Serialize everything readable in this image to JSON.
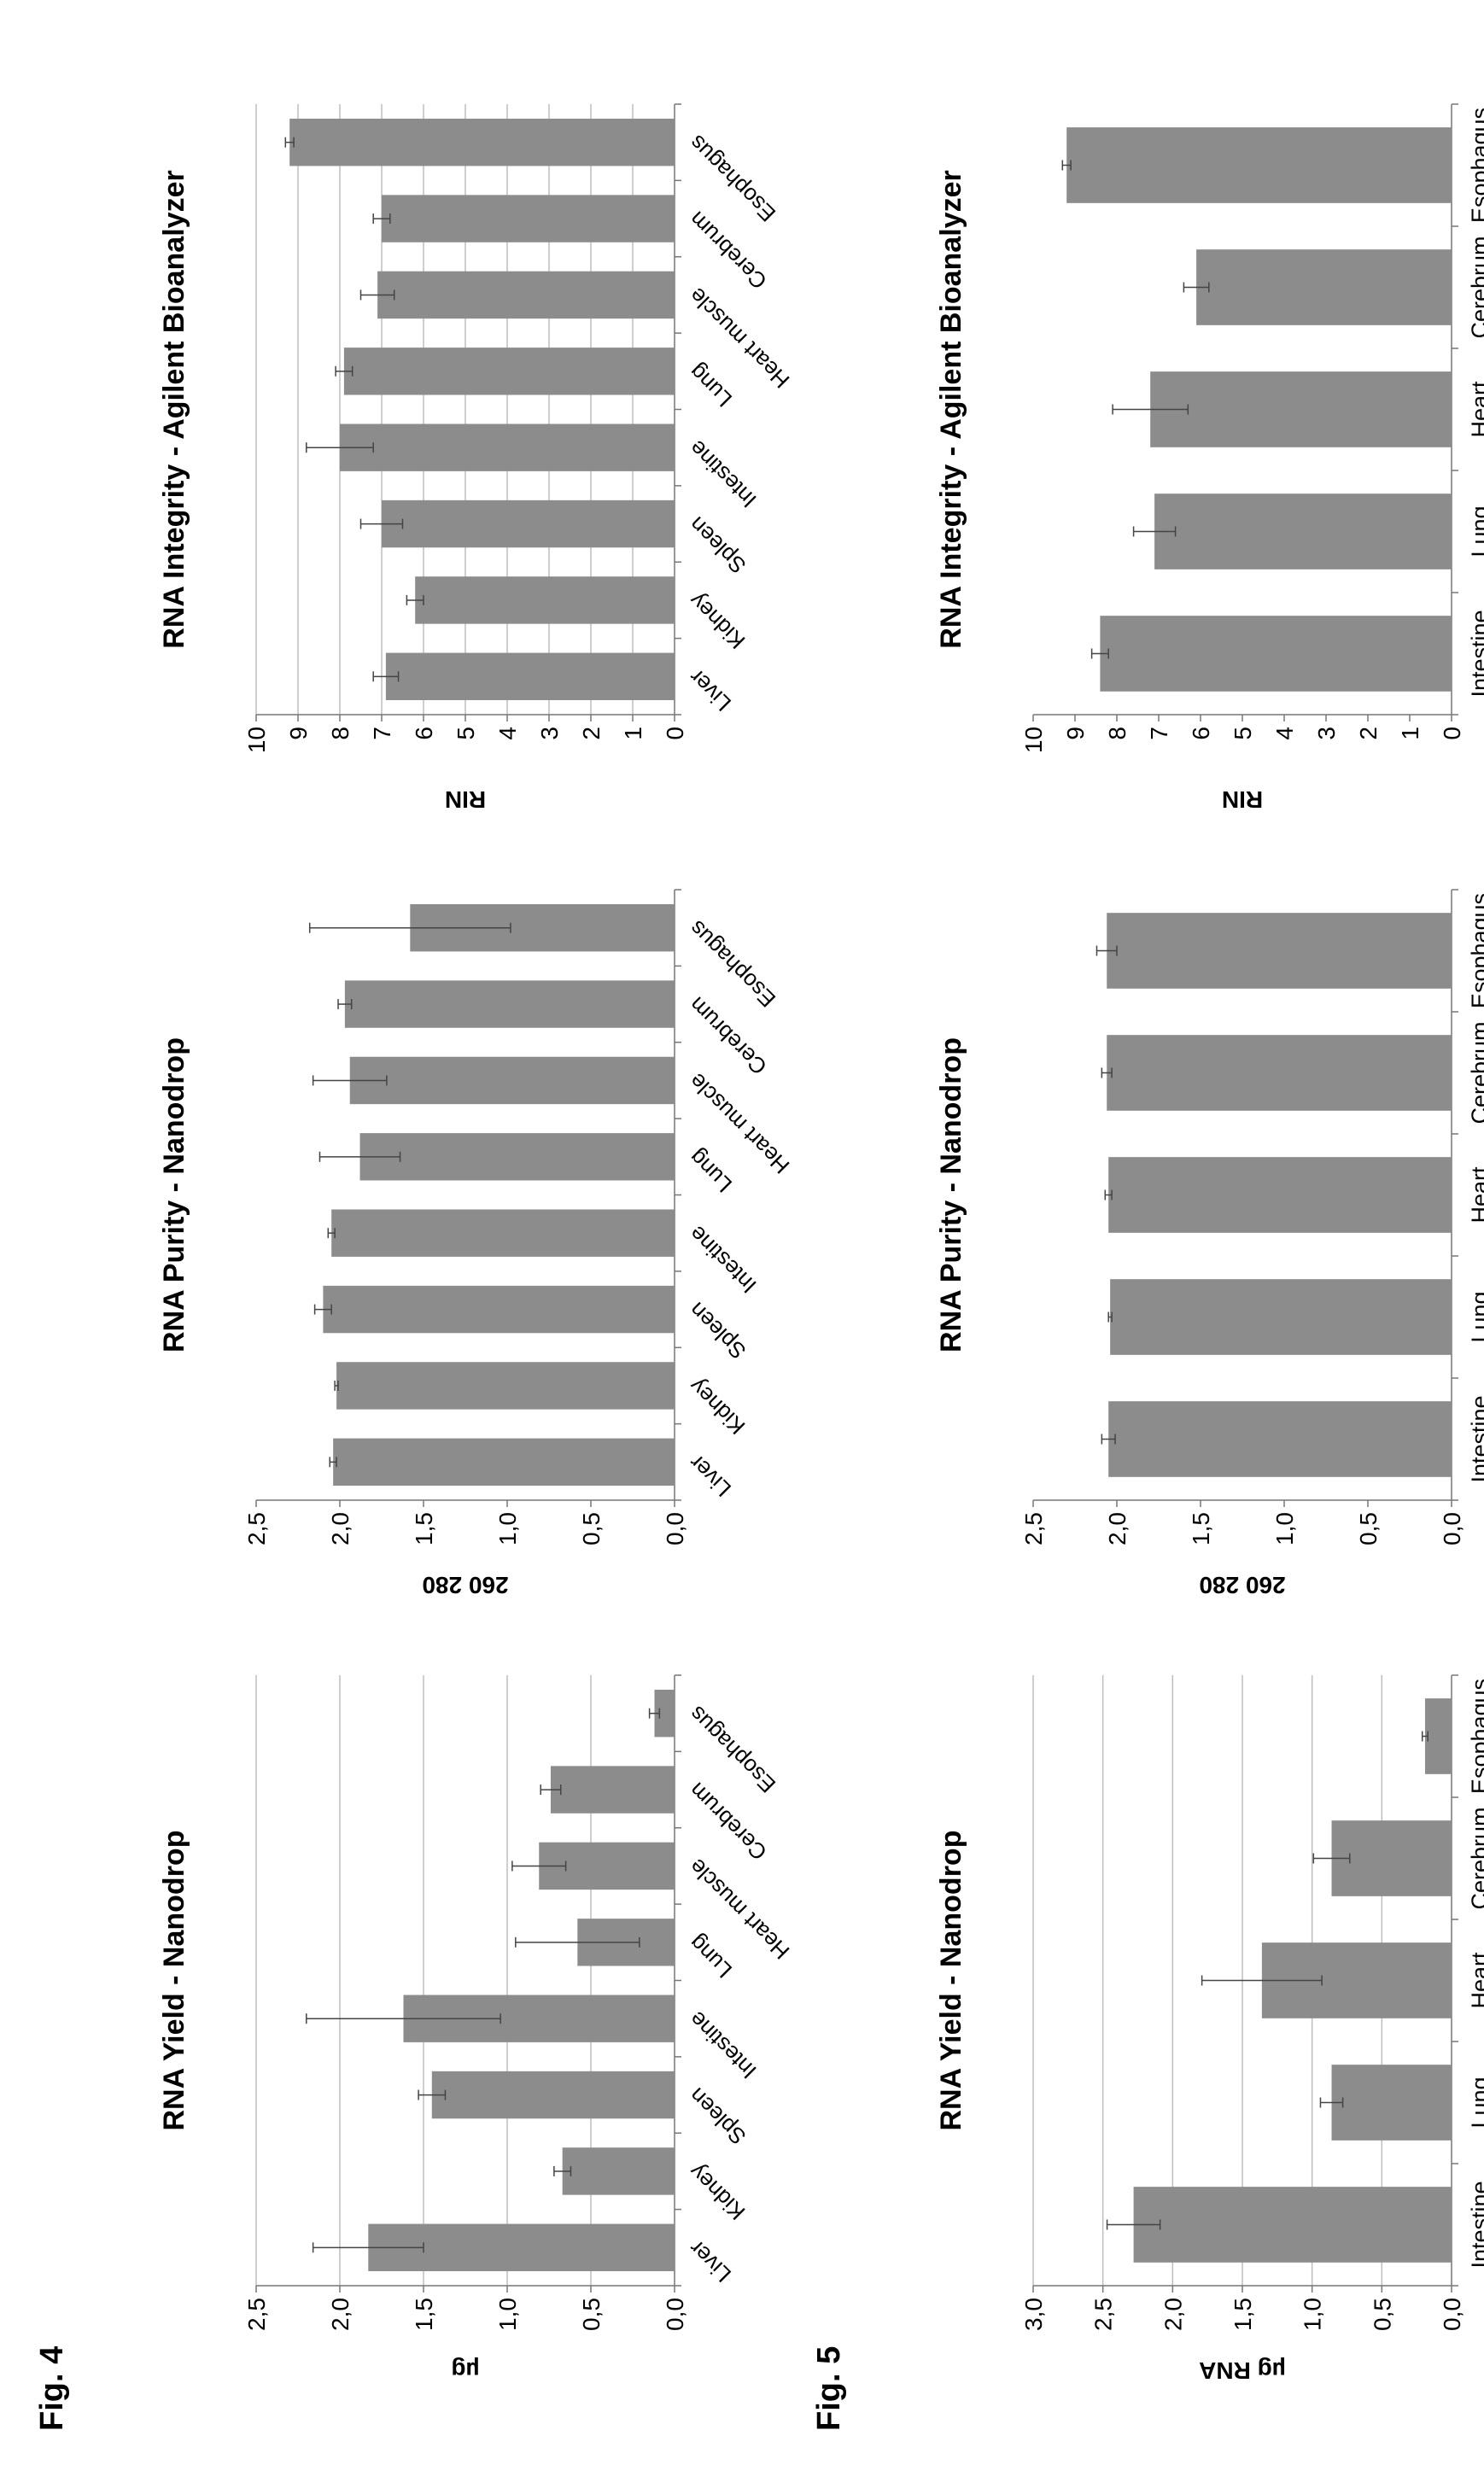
{
  "figures": [
    {
      "label": "Fig. 4"
    },
    {
      "label": "Fig. 5"
    }
  ],
  "chart_data": [
    {
      "figure": "Fig. 4",
      "type": "bar",
      "title": "RNA Yield - Nanodrop",
      "xlabel": "",
      "ylabel": "µg",
      "ylim": [
        0,
        2.5
      ],
      "yticks": [
        "0,0",
        "0,5",
        "1,0",
        "1,5",
        "2,0",
        "2,5"
      ],
      "grid": true,
      "category_label_style": "slanted",
      "categories": [
        "Liver",
        "Kidney",
        "Spleen",
        "Intestine",
        "Lung",
        "Heart muscle",
        "Cerebrum",
        "Esophagus"
      ],
      "values": [
        1.83,
        0.67,
        1.45,
        1.62,
        0.58,
        0.81,
        0.74,
        0.12
      ],
      "errors": [
        0.33,
        0.05,
        0.08,
        0.58,
        0.37,
        0.16,
        0.06,
        0.03
      ]
    },
    {
      "figure": "Fig. 4",
      "type": "bar",
      "title": "RNA Purity - Nanodrop",
      "xlabel": "",
      "ylabel": "260 280",
      "ylim": [
        0,
        2.5
      ],
      "yticks": [
        "0,0",
        "0,5",
        "1,0",
        "1,5",
        "2,0",
        "2,5"
      ],
      "grid": false,
      "category_label_style": "slanted",
      "categories": [
        "Liver",
        "Kidney",
        "Spleen",
        "Intestine",
        "Lung",
        "Heart muscle",
        "Cerebrum",
        "Esophagus"
      ],
      "values": [
        2.04,
        2.02,
        2.1,
        2.05,
        1.88,
        1.94,
        1.97,
        1.58
      ],
      "errors": [
        0.02,
        0.01,
        0.05,
        0.02,
        0.24,
        0.22,
        0.04,
        0.6
      ]
    },
    {
      "figure": "Fig. 4",
      "type": "bar",
      "title": "RNA Integrity - Agilent Bioanalyzer",
      "xlabel": "",
      "ylabel": "RIN",
      "ylim": [
        0,
        10
      ],
      "yticks": [
        "0",
        "1",
        "2",
        "3",
        "4",
        "5",
        "6",
        "7",
        "8",
        "9",
        "10"
      ],
      "grid": true,
      "category_label_style": "slanted",
      "categories": [
        "Liver",
        "Kidney",
        "Spleen",
        "Intestine",
        "Lung",
        "Heart muscle",
        "Cerebrum",
        "Esophagus"
      ],
      "values": [
        6.9,
        6.2,
        7.0,
        8.0,
        7.9,
        7.1,
        7.0,
        9.2
      ],
      "errors": [
        0.3,
        0.2,
        0.5,
        0.8,
        0.2,
        0.4,
        0.2,
        0.1
      ]
    },
    {
      "figure": "Fig. 5",
      "type": "bar",
      "title": "RNA Yield - Nanodrop",
      "xlabel": "",
      "ylabel": "µg RNA",
      "ylim": [
        0,
        3.0
      ],
      "yticks": [
        "0,0",
        "0,5",
        "1,0",
        "1,5",
        "2,0",
        "2,5",
        "3,0"
      ],
      "grid": true,
      "category_label_style": "horizontal",
      "categories": [
        "Intestine",
        "Lung",
        "Heart muscle",
        "Cerebrum",
        "Esophagus"
      ],
      "values": [
        2.28,
        0.86,
        1.36,
        0.86,
        0.19
      ],
      "errors": [
        0.19,
        0.08,
        0.43,
        0.13,
        0.02
      ]
    },
    {
      "figure": "Fig. 5",
      "type": "bar",
      "title": "RNA Purity - Nanodrop",
      "xlabel": "",
      "ylabel": "260 280",
      "ylim": [
        0,
        2.5
      ],
      "yticks": [
        "0,0",
        "0,5",
        "1,0",
        "1,5",
        "2,0",
        "2,5"
      ],
      "grid": false,
      "category_label_style": "horizontal",
      "categories": [
        "Intestine",
        "Lung",
        "Heart muscle",
        "Cerebrum",
        "Esophagus"
      ],
      "values": [
        2.05,
        2.04,
        2.05,
        2.06,
        2.06
      ],
      "errors": [
        0.04,
        0.01,
        0.02,
        0.03,
        0.06
      ]
    },
    {
      "figure": "Fig. 5",
      "type": "bar",
      "title": "RNA Integrity - Agilent Bioanalyzer",
      "xlabel": "",
      "ylabel": "RIN",
      "ylim": [
        0,
        10
      ],
      "yticks": [
        "0",
        "1",
        "2",
        "3",
        "4",
        "5",
        "6",
        "7",
        "8",
        "9",
        "10"
      ],
      "grid": false,
      "category_label_style": "horizontal",
      "categories": [
        "Intestine",
        "Lung",
        "Heart muscle",
        "Cerebrum",
        "Esophagus"
      ],
      "values": [
        8.4,
        7.1,
        7.2,
        6.1,
        9.2
      ],
      "errors": [
        0.2,
        0.5,
        0.9,
        0.3,
        0.1
      ]
    }
  ]
}
